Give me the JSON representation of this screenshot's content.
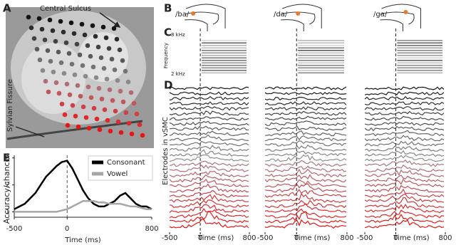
{
  "panel_labels": [
    "A",
    "B",
    "C",
    "D",
    "E"
  ],
  "brain": {
    "labels": [
      "Central Sulcus",
      "Sylvian Fissure"
    ]
  },
  "syllables": [
    "/ba/",
    "/da/",
    "/ga/"
  ],
  "spectrogram": {
    "top": "8 kHz",
    "bottom": "2 kHz",
    "axis_label": "Frequency"
  },
  "traces": {
    "ylabel": "Electrodes in vSMC",
    "xlabel": "Time (ms)",
    "xlim": [
      -500,
      800
    ],
    "xticks": [
      -500,
      0,
      800
    ]
  },
  "chart_data": {
    "type": "line",
    "ylabel": "Accuracy/chance",
    "xlabel": "Time (ms)",
    "x": [
      -500,
      -450,
      -400,
      -350,
      -300,
      -250,
      -200,
      -150,
      -100,
      -50,
      0,
      50,
      100,
      150,
      200,
      250,
      300,
      350,
      400,
      450,
      500,
      550,
      600,
      650,
      700,
      750,
      800
    ],
    "xlim": [
      -500,
      800
    ],
    "xticks": [
      -500,
      0,
      800
    ],
    "ylim": [
      0.8,
      3.1
    ],
    "yticks": [
      1,
      2,
      3
    ],
    "legend": "upper right",
    "series": [
      {
        "name": "Consonant",
        "color": "#000000",
        "values": [
          1.1,
          1.2,
          1.3,
          1.5,
          1.7,
          2.0,
          2.3,
          2.5,
          2.7,
          2.85,
          2.9,
          2.6,
          2.2,
          1.8,
          1.5,
          1.3,
          1.2,
          1.2,
          1.3,
          1.4,
          1.6,
          1.7,
          1.5,
          1.3,
          1.2,
          1.2,
          1.1
        ]
      },
      {
        "name": "Vowel",
        "color": "#a6a6a6",
        "values": [
          1.0,
          1.0,
          1.0,
          1.0,
          1.0,
          1.0,
          1.0,
          1.0,
          1.0,
          1.05,
          1.1,
          1.2,
          1.3,
          1.4,
          1.4,
          1.4,
          1.35,
          1.35,
          1.3,
          1.3,
          1.3,
          1.25,
          1.2,
          1.2,
          1.15,
          1.1,
          1.1
        ]
      }
    ]
  }
}
